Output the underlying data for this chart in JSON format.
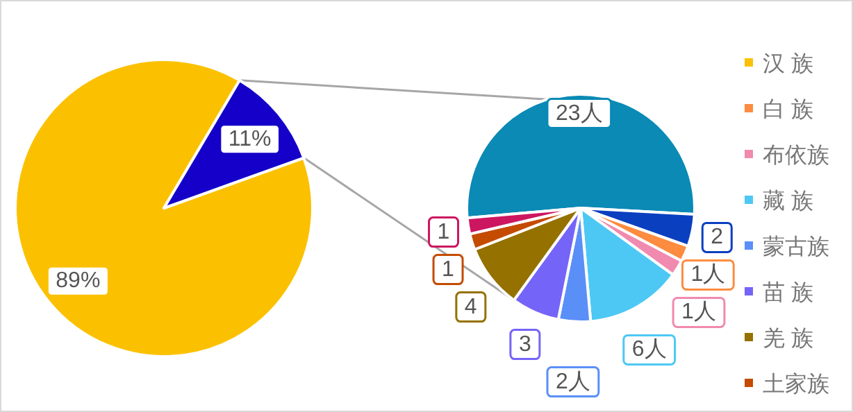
{
  "chart_data": [
    {
      "type": "pie",
      "categories": [
        "汉 族",
        null
      ],
      "values": [
        89,
        11
      ],
      "colors": [
        "#fbc100",
        "#1400c8"
      ],
      "value_labels": [
        "89%",
        "11%"
      ],
      "legend": "right"
    },
    {
      "type": "pie",
      "categories": [
        null,
        null,
        "白 族",
        "布依族",
        "藏 族",
        "蒙古族",
        "苗 族",
        "羌 族",
        "土家族",
        null
      ],
      "values": [
        23,
        2,
        1,
        1,
        6,
        2,
        3,
        4,
        1,
        1
      ],
      "colors": [
        "#0a8ab5",
        "#0a3fc0",
        "#fd8c40",
        "#f08aaf",
        "#4dc8f4",
        "#5a8ff8",
        "#7564f8",
        "#957100",
        "#c44b00",
        "#cc1660"
      ],
      "value_labels": [
        "23人",
        "2",
        "1人",
        "1人",
        "6人",
        "2人",
        "3",
        "4",
        "1",
        "1"
      ],
      "legend": "right"
    }
  ]
}
